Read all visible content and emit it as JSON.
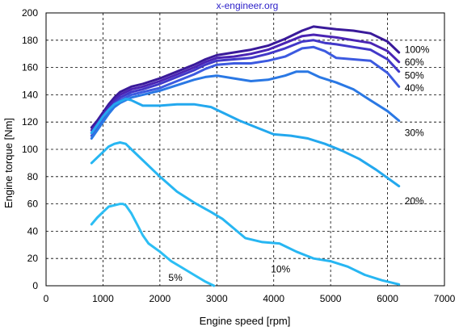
{
  "chart_data": {
    "type": "line",
    "title": "x-engineer.org",
    "xlabel": "Engine speed [rpm]",
    "ylabel": "Engine torque [Nm]",
    "xlim": [
      0,
      7000
    ],
    "ylim": [
      0,
      200
    ],
    "xticks": [
      0,
      1000,
      2000,
      3000,
      4000,
      5000,
      6000,
      7000
    ],
    "yticks": [
      0,
      20,
      40,
      60,
      80,
      100,
      120,
      140,
      160,
      180,
      200
    ],
    "grid": true,
    "series": [
      {
        "name": "100%",
        "color": "#3a1a9a",
        "x": [
          800,
          900,
          1000,
          1100,
          1200,
          1300,
          1500,
          1700,
          2000,
          2300,
          2600,
          2800,
          3000,
          3300,
          3600,
          3900,
          4200,
          4500,
          4700,
          4900,
          5100,
          5400,
          5700,
          6000,
          6200
        ],
        "y": [
          116,
          121,
          127,
          133,
          138,
          142,
          146,
          148,
          152,
          157,
          162,
          166,
          169,
          171,
          173,
          176,
          181,
          187,
          190,
          189,
          188,
          187,
          185,
          179,
          171
        ]
      },
      {
        "name": "60%",
        "color": "#4a24b4",
        "x": [
          800,
          900,
          1000,
          1100,
          1200,
          1300,
          1500,
          1700,
          2000,
          2300,
          2600,
          2800,
          3000,
          3300,
          3600,
          3900,
          4200,
          4500,
          4700,
          4900,
          5100,
          5400,
          5700,
          6000,
          6200
        ],
        "y": [
          114,
          119,
          125,
          131,
          136,
          140,
          144,
          146,
          150,
          155,
          160,
          164,
          167,
          168,
          170,
          173,
          178,
          183,
          184,
          183,
          182,
          180,
          178,
          172,
          164
        ]
      },
      {
        "name": "50%",
        "color": "#4238c8",
        "x": [
          800,
          900,
          1000,
          1100,
          1200,
          1300,
          1500,
          1700,
          2000,
          2300,
          2600,
          2800,
          3000,
          3300,
          3600,
          3900,
          4200,
          4500,
          4700,
          4900,
          5100,
          5400,
          5700,
          6000,
          6200
        ],
        "y": [
          112,
          117,
          123,
          129,
          134,
          138,
          142,
          144,
          148,
          153,
          158,
          162,
          165,
          166,
          167,
          170,
          174,
          179,
          180,
          178,
          177,
          175,
          173,
          166,
          157
        ]
      },
      {
        "name": "40%",
        "color": "#3c5ae0",
        "x": [
          800,
          900,
          1000,
          1100,
          1200,
          1300,
          1500,
          1700,
          2000,
          2300,
          2600,
          2800,
          3000,
          3300,
          3600,
          3900,
          4200,
          4500,
          4700,
          4900,
          5100,
          5400,
          5700,
          6000,
          6200
        ],
        "y": [
          110,
          116,
          122,
          128,
          133,
          136,
          140,
          142,
          145,
          150,
          155,
          159,
          162,
          163,
          163,
          165,
          168,
          174,
          175,
          172,
          167,
          166,
          165,
          156,
          146
        ]
      },
      {
        "name": "30%",
        "color": "#2a78e4",
        "x": [
          800,
          900,
          1000,
          1100,
          1200,
          1300,
          1500,
          1700,
          2000,
          2300,
          2600,
          2800,
          3000,
          3300,
          3600,
          3900,
          4200,
          4400,
          4600,
          4800,
          5100,
          5400,
          5700,
          6000,
          6200
        ],
        "y": [
          108,
          114,
          120,
          126,
          131,
          134,
          138,
          140,
          143,
          147,
          151,
          153,
          154,
          152,
          150,
          151,
          154,
          157,
          157,
          153,
          149,
          144,
          136,
          128,
          121
        ]
      },
      {
        "name": "20%",
        "color": "#23a8ee",
        "x": [
          800,
          900,
          1000,
          1100,
          1200,
          1300,
          1400,
          1500,
          1700,
          2000,
          2300,
          2600,
          2900,
          3100,
          3400,
          3700,
          4000,
          4300,
          4600,
          4900,
          5200,
          5500,
          5800,
          6200
        ],
        "y": [
          112,
          118,
          124,
          129,
          133,
          135,
          137,
          136,
          132,
          132,
          133,
          133,
          131,
          127,
          121,
          116,
          111,
          110,
          108,
          104,
          99,
          93,
          85,
          73
        ]
      },
      {
        "name": "10%",
        "color": "#27b6f2",
        "x": [
          800,
          900,
          1000,
          1100,
          1200,
          1300,
          1400,
          1500,
          1700,
          2000,
          2300,
          2600,
          2900,
          3100,
          3300,
          3500,
          3800,
          4100,
          4400,
          4700,
          5000,
          5300,
          5600,
          5900,
          6200
        ],
        "y": [
          90,
          94,
          98,
          102,
          104,
          105,
          104,
          100,
          92,
          80,
          69,
          61,
          54,
          49,
          42,
          35,
          32,
          31,
          25,
          20,
          18,
          14,
          8,
          4,
          1
        ]
      },
      {
        "name": "5%",
        "color": "#2cbef4",
        "x": [
          800,
          900,
          1000,
          1100,
          1200,
          1300,
          1350,
          1400,
          1500,
          1600,
          1700,
          1800,
          2000,
          2200,
          2400,
          2600,
          2800,
          2950
        ],
        "y": [
          45,
          50,
          54,
          58,
          59,
          60,
          60,
          59,
          53,
          45,
          37,
          31,
          25,
          18,
          13,
          8,
          3,
          0
        ]
      }
    ],
    "annotations": [
      {
        "text": "100%",
        "x": 6300,
        "y": 173
      },
      {
        "text": "60%",
        "x": 6300,
        "y": 164
      },
      {
        "text": "50%",
        "x": 6300,
        "y": 154
      },
      {
        "text": "40%",
        "x": 6300,
        "y": 145
      },
      {
        "text": "30%",
        "x": 6300,
        "y": 112
      },
      {
        "text": "20%",
        "x": 6300,
        "y": 62
      },
      {
        "text": "10%",
        "x": 3950,
        "y": 12
      },
      {
        "text": "5%",
        "x": 2150,
        "y": 6
      }
    ]
  }
}
